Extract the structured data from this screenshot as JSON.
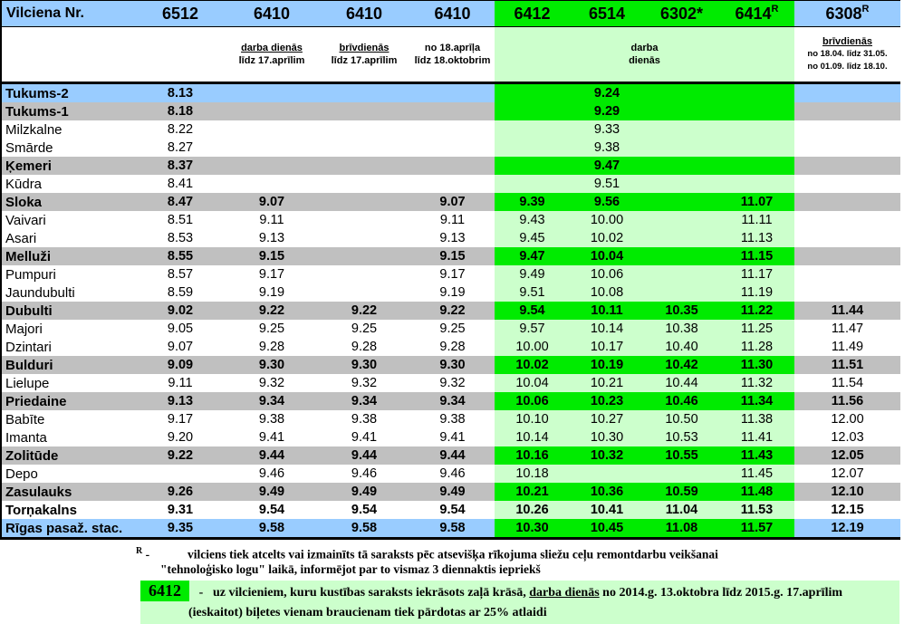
{
  "table": {
    "station_col_label": "Vilciena Nr.",
    "columns": [
      {
        "train": "6512",
        "note": []
      },
      {
        "train": "6410",
        "note_underline": "darba dienās",
        "note": [
          "līdz 17.aprīlim"
        ]
      },
      {
        "train": "6410",
        "note_underline": "brīvdienās",
        "note": [
          "līdz 17.aprīlim"
        ]
      },
      {
        "train": "6410",
        "note": [
          "no 18.aprīļa",
          "līdz 18.oktobrim"
        ]
      },
      {
        "train": "6412",
        "zone": "green"
      },
      {
        "train": "6514",
        "zone": "green"
      },
      {
        "train": "6302",
        "suffix": "*",
        "zone": "green"
      },
      {
        "train": "6414",
        "sup": "R",
        "zone": "green"
      },
      {
        "train": "6308",
        "sup": "R",
        "note_underline": "brīvdienās",
        "note": [
          "no 18.04. līdz 31.05.",
          "no 01.09. līdz 18.10."
        ],
        "small_notes": true
      }
    ],
    "zone_note": [
      "darba",
      "dienās"
    ],
    "rows": [
      {
        "station": "Tukums-2",
        "style": "blue",
        "bold": true,
        "times": [
          "8.13",
          "",
          "",
          "",
          "",
          "9.24",
          "",
          "",
          ""
        ]
      },
      {
        "station": "Tukums-1",
        "style": "gray",
        "bold": true,
        "times": [
          "8.18",
          "",
          "",
          "",
          "",
          "9.29",
          "",
          "",
          ""
        ]
      },
      {
        "station": "Milzkalne",
        "style": "white",
        "bold": false,
        "times": [
          "8.22",
          "",
          "",
          "",
          "",
          "9.33",
          "",
          "",
          ""
        ]
      },
      {
        "station": "Smārde",
        "style": "white",
        "bold": false,
        "times": [
          "8.27",
          "",
          "",
          "",
          "",
          "9.38",
          "",
          "",
          ""
        ]
      },
      {
        "station": "Ķemeri",
        "style": "gray",
        "bold": true,
        "times": [
          "8.37",
          "",
          "",
          "",
          "",
          "9.47",
          "",
          "",
          ""
        ]
      },
      {
        "station": "Kūdra",
        "style": "white",
        "bold": false,
        "times": [
          "8.41",
          "",
          "",
          "",
          "",
          "9.51",
          "",
          "",
          ""
        ]
      },
      {
        "station": "Sloka",
        "style": "gray",
        "bold": true,
        "times": [
          "8.47",
          "9.07",
          "",
          "9.07",
          "9.39",
          "9.56",
          "",
          "11.07",
          ""
        ]
      },
      {
        "station": "Vaivari",
        "style": "white",
        "bold": false,
        "times": [
          "8.51",
          "9.11",
          "",
          "9.11",
          "9.43",
          "10.00",
          "",
          "11.11",
          ""
        ]
      },
      {
        "station": "Asari",
        "style": "white",
        "bold": false,
        "times": [
          "8.53",
          "9.13",
          "",
          "9.13",
          "9.45",
          "10.02",
          "",
          "11.13",
          ""
        ]
      },
      {
        "station": "Melluži",
        "style": "gray",
        "bold": true,
        "times": [
          "8.55",
          "9.15",
          "",
          "9.15",
          "9.47",
          "10.04",
          "",
          "11.15",
          ""
        ]
      },
      {
        "station": "Pumpuri",
        "style": "white",
        "bold": false,
        "times": [
          "8.57",
          "9.17",
          "",
          "9.17",
          "9.49",
          "10.06",
          "",
          "11.17",
          ""
        ]
      },
      {
        "station": "Jaundubulti",
        "style": "white",
        "bold": false,
        "times": [
          "8.59",
          "9.19",
          "",
          "9.19",
          "9.51",
          "10.08",
          "",
          "11.19",
          ""
        ]
      },
      {
        "station": "Dubulti",
        "style": "gray",
        "bold": true,
        "times": [
          "9.02",
          "9.22",
          "9.22",
          "9.22",
          "9.54",
          "10.11",
          "10.35",
          "11.22",
          "11.44"
        ]
      },
      {
        "station": "Majori",
        "style": "white",
        "bold": false,
        "times": [
          "9.05",
          "9.25",
          "9.25",
          "9.25",
          "9.57",
          "10.14",
          "10.38",
          "11.25",
          "11.47"
        ]
      },
      {
        "station": "Dzintari",
        "style": "white",
        "bold": false,
        "times": [
          "9.07",
          "9.28",
          "9.28",
          "9.28",
          "10.00",
          "10.17",
          "10.40",
          "11.28",
          "11.49"
        ]
      },
      {
        "station": "Bulduri",
        "style": "gray",
        "bold": true,
        "times": [
          "9.09",
          "9.30",
          "9.30",
          "9.30",
          "10.02",
          "10.19",
          "10.42",
          "11.30",
          "11.51"
        ]
      },
      {
        "station": "Lielupe",
        "style": "white",
        "bold": false,
        "times": [
          "9.11",
          "9.32",
          "9.32",
          "9.32",
          "10.04",
          "10.21",
          "10.44",
          "11.32",
          "11.54"
        ]
      },
      {
        "station": "Priedaine",
        "style": "gray",
        "bold": true,
        "times": [
          "9.13",
          "9.34",
          "9.34",
          "9.34",
          "10.06",
          "10.23",
          "10.46",
          "11.34",
          "11.56"
        ]
      },
      {
        "station": "Babīte",
        "style": "white",
        "bold": false,
        "times": [
          "9.17",
          "9.38",
          "9.38",
          "9.38",
          "10.10",
          "10.27",
          "10.50",
          "11.38",
          "12.00"
        ]
      },
      {
        "station": "Imanta",
        "style": "white",
        "bold": false,
        "times": [
          "9.20",
          "9.41",
          "9.41",
          "9.41",
          "10.14",
          "10.30",
          "10.53",
          "11.41",
          "12.03"
        ]
      },
      {
        "station": "Zolitūde",
        "style": "gray",
        "bold": true,
        "times": [
          "9.22",
          "9.44",
          "9.44",
          "9.44",
          "10.16",
          "10.32",
          "10.55",
          "11.43",
          "12.05"
        ]
      },
      {
        "station": "Depo",
        "style": "white",
        "bold": false,
        "times": [
          "",
          "9.46",
          "9.46",
          "9.46",
          "10.18",
          "",
          "",
          "11.45",
          "12.07"
        ]
      },
      {
        "station": "Zasulauks",
        "style": "gray",
        "bold": true,
        "times": [
          "9.26",
          "9.49",
          "9.49",
          "9.49",
          "10.21",
          "10.36",
          "10.59",
          "11.48",
          "12.10"
        ]
      },
      {
        "station": "Torņakalns",
        "style": "white",
        "bold": true,
        "times": [
          "9.31",
          "9.54",
          "9.54",
          "9.54",
          "10.26",
          "10.41",
          "11.04",
          "11.53",
          "12.15"
        ]
      },
      {
        "station": "Rīgas pasaž. stac.",
        "style": "blue",
        "bold": true,
        "times": [
          "9.35",
          "9.58",
          "9.58",
          "9.58",
          "10.30",
          "10.45",
          "11.08",
          "11.57",
          "12.19"
        ]
      }
    ]
  },
  "footnotes": {
    "remont": {
      "marker": "R",
      "dash": "-",
      "line1": "vilciens tiek atcelts vai izmainīts tā saraksts pēc atsevišķa rīkojuma sliežu ceļu remontdarbu veikšanai",
      "line2": "\"tehnoloģisko logu\" laikā, informējot par to vismaz 3 diennaktis iepriekš"
    },
    "discount": {
      "train": "6412",
      "dash": "-",
      "line1_pre": "uz vilcieniem, kuru kustības saraksts iekrāsots zaļā krāsā, ",
      "line1_underlined": "darba dienās",
      "line1_post": " no 2014.g.  13.oktobra līdz 2015.g.  17.aprīlim",
      "line2": "(ieskaitot)   biļetes vienam braucienam tiek pārdotas ar 25% atlaidi"
    }
  },
  "colors": {
    "row_blue": "#99CCFF",
    "row_gray": "#C0C0C0",
    "highlight_green": "#00EB00",
    "highlight_light_green": "#CCFFCC",
    "border": "#000000"
  }
}
